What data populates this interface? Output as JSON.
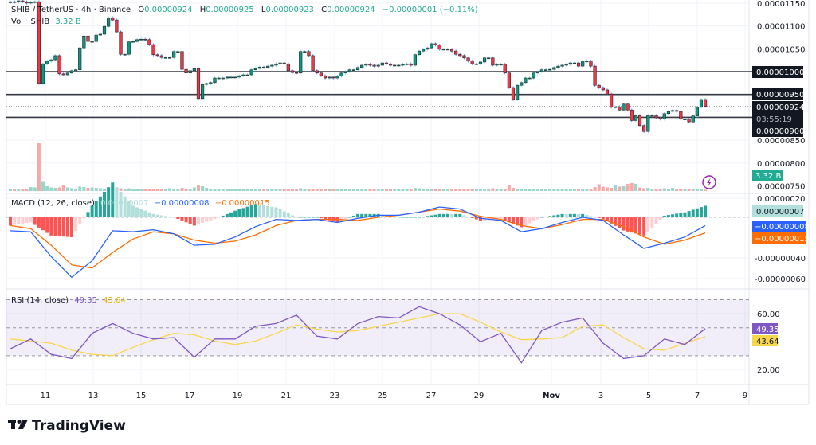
{
  "header": {
    "symbol": "SHIB / TetherUS · 4h · Binance",
    "o_label": "O",
    "o_value": "0.00000924",
    "h_label": "H",
    "h_value": "0.00000925",
    "l_label": "L",
    "l_value": "0.00000923",
    "c_label": "C",
    "c_value": "0.00000924",
    "change": "−0.00000001 (−0.11%)",
    "vol_label": "Vol · SHIB",
    "vol_value": "3.32 B"
  },
  "colors": {
    "up": "#089981",
    "down": "#f23645",
    "legend_value": "#22ab94",
    "macd": "#2962ff",
    "signal": "#ff6d00",
    "rsi": "#7e57c2",
    "rsi_ma": "#f7d74a",
    "hist_up_strong": "#26a69a",
    "hist_up_weak": "#b2dfdb",
    "hist_down_strong": "#ff5252",
    "hist_down_weak": "#ffcdd2"
  },
  "price_axis": {
    "ticks": [
      "0.00001150",
      "0.00001100",
      "0.00001050",
      "0.00000850",
      "0.00000800",
      "0.00000750"
    ],
    "levels": [
      "0.00001000",
      "0.00000950",
      "0.00000900"
    ],
    "current_price": "0.00000924",
    "countdown": "03:55:19",
    "volume_badge": "3.32 B"
  },
  "macd": {
    "label": "MACD (12, 26, close)",
    "hist_value": "0.00000007",
    "macd_value": "−0.00000008",
    "signal_value": "−0.00000015",
    "ticks": [
      "0.00000020",
      "-0.00000040",
      "-0.00000060"
    ]
  },
  "rsi": {
    "label": "RSI (14, close)",
    "rsi_value": "49.35",
    "ma_value": "43.64",
    "ticks": [
      "60.00",
      "20.00"
    ]
  },
  "time_axis": {
    "labels": [
      "11",
      "13",
      "15",
      "17",
      "19",
      "21",
      "23",
      "25",
      "27",
      "29",
      "Nov",
      "3",
      "5",
      "7",
      "9"
    ]
  },
  "brand": {
    "name": "TradingView"
  },
  "chart_data": {
    "type": "candlestick",
    "interval": "4h",
    "levels": [
      1e-05,
      9.5e-06,
      9e-06
    ],
    "close": [
      1.153e-05,
      1.152e-05,
      1.155e-05,
      1.153e-05,
      1.15e-05,
      1.152e-05,
      1.153e-05,
      9.74e-06,
      1.017e-05,
      1.023e-05,
      1.026e-05,
      1.035e-05,
      9.95e-06,
      9.93e-06,
      9.97e-06,
      1.002e-05,
      1.004e-05,
      1.052e-05,
      1.078e-05,
      1.066e-05,
      1.066e-05,
      1.08e-05,
      1.082e-05,
      1.099e-05,
      1.118e-05,
      1.113e-05,
      1.087e-05,
      1.038e-05,
      1.038e-05,
      1.065e-05,
      1.066e-05,
      1.07e-05,
      1.071e-05,
      1.07e-05,
      1.059e-05,
      1.037e-05,
      1.035e-05,
      1.031e-05,
      1.031e-05,
      1.031e-05,
      1.044e-05,
      1.044e-05,
      1.005e-05,
      9.97e-06,
      1.002e-05,
      1.007e-05,
      9.41e-06,
      9.72e-06,
      9.74e-06,
      9.76e-06,
      9.86e-06,
      9.86e-06,
      9.86e-06,
      9.88e-06,
      9.88e-06,
      9.88e-06,
      9.91e-06,
      9.93e-06,
      9.93e-06,
      1.004e-05,
      1.007e-05,
      1.01e-05,
      1.009e-05,
      1.012e-05,
      1.014e-05,
      1.017e-05,
      1.019e-05,
      1.017e-05,
      1.002e-05,
      9.98e-06,
      9.97e-06,
      1.044e-05,
      1.044e-05,
      1.035e-05,
      1.002e-05,
      9.97e-06,
      9.91e-06,
      9.86e-06,
      9.88e-06,
      9.86e-06,
      9.9e-06,
      9.97e-06,
      1e-05,
      1.004e-05,
      1.004e-05,
      1.009e-05,
      1.014e-05,
      1.016e-05,
      1.014e-05,
      1.012e-05,
      1.014e-05,
      1.019e-05,
      1.017e-05,
      1.014e-05,
      1.014e-05,
      1.014e-05,
      1.016e-05,
      1.017e-05,
      1.014e-05,
      1.037e-05,
      1.045e-05,
      1.049e-05,
      1.052e-05,
      1.061e-05,
      1.058e-05,
      1.049e-05,
      1.049e-05,
      1.049e-05,
      1.045e-05,
      1.038e-05,
      1.035e-05,
      1.03e-05,
      1.023e-05,
      1.017e-05,
      1.017e-05,
      1.021e-05,
      1.03e-05,
      1.03e-05,
      1.014e-05,
      1.016e-05,
      1.016e-05,
      9.97e-06,
      9.65e-06,
      9.39e-06,
      9.7e-06,
      9.76e-06,
      9.86e-06,
      9.86e-06,
      9.97e-06,
      1e-05,
      1.004e-05,
      1.004e-05,
      1.005e-05,
      1.009e-05,
      1.012e-05,
      1.014e-05,
      1.016e-05,
      1.019e-05,
      1.019e-05,
      1.012e-05,
      1.023e-05,
      1.023e-05,
      1.012e-05,
      9.7e-06,
      9.65e-06,
      9.6e-06,
      9.51e-06,
      9.22e-06,
      9.23e-06,
      9.16e-06,
      9.29e-06,
      9.16e-06,
      8.93e-06,
      9.04e-06,
      8.82e-06,
      8.69e-06,
      9.04e-06,
      9.04e-06,
      8.99e-06,
      8.96e-06,
      9.08e-06,
      9.13e-06,
      9.15e-06,
      9.13e-06,
      8.96e-06,
      8.96e-06,
      8.9e-06,
      9.03e-06,
      9.22e-06,
      9.39e-06,
      9.24e-06
    ],
    "volume_billions": [
      6,
      5,
      4,
      5,
      5,
      10,
      9,
      120,
      25,
      12,
      9,
      8,
      9,
      14,
      9,
      7,
      6,
      11,
      10,
      8,
      9,
      8,
      7,
      6,
      7,
      9,
      8,
      7,
      6,
      7,
      4,
      5,
      6,
      5,
      4,
      5,
      5,
      4,
      6,
      7,
      6,
      5,
      8,
      4,
      5,
      9,
      14,
      12,
      8,
      5,
      4,
      4,
      4,
      5,
      4,
      4,
      4,
      5,
      6,
      5,
      4,
      5,
      4,
      6,
      4,
      5,
      5,
      4,
      5,
      6,
      5,
      7,
      6,
      5,
      4,
      5,
      6,
      5,
      4,
      4,
      5,
      4,
      5,
      4,
      6,
      5,
      4,
      5,
      5,
      4,
      4,
      5,
      4,
      5,
      4,
      4,
      5,
      4,
      5,
      8,
      7,
      5,
      6,
      5,
      4,
      4,
      5,
      4,
      4,
      5,
      6,
      5,
      5,
      4,
      4,
      5,
      5,
      4,
      7,
      6,
      5,
      5,
      14,
      8,
      6,
      5,
      5,
      4,
      5,
      4,
      5,
      4,
      4,
      5,
      4,
      4,
      5,
      5,
      4,
      4,
      4,
      5,
      6,
      10,
      17,
      11,
      9,
      8,
      16,
      11,
      12,
      18,
      20,
      18,
      9,
      7,
      8,
      6,
      5,
      6,
      7,
      6,
      8,
      6,
      6,
      5,
      6,
      5,
      6,
      6,
      3.32
    ],
    "macd_every_5_bars": {
      "macd": [
        -1.3e-07,
        -1.4e-07,
        -3.8e-07,
        -5.8e-07,
        -4.2e-07,
        -1.3e-07,
        -1.4e-07,
        -1.2e-07,
        -1.6e-07,
        -2.7e-07,
        -2.6e-07,
        -1.9e-07,
        -9e-08,
        -2e-08,
        -3e-08,
        -2e-08,
        -5e-08,
        -1e-08,
        2e-08,
        2e-08,
        5e-08,
        1e-07,
        8e-08,
        -1e-08,
        -3e-08,
        -1.4e-07,
        -1.1e-07,
        -5e-08,
        0.0,
        -3e-08,
        -1.7e-07,
        -3e-07,
        -2.5e-07,
        -1.9e-07,
        -8e-08
      ],
      "signal": [
        -8e-08,
        -1.1e-07,
        -2.7e-07,
        -4.6e-07,
        -4.9e-07,
        -3.4e-07,
        -2.1e-07,
        -1.4e-07,
        -1.6e-07,
        -2.2e-07,
        -2.5e-07,
        -2.3e-07,
        -1.7e-07,
        -8e-08,
        -3e-08,
        -2e-08,
        -2e-08,
        -3e-08,
        0.0,
        2e-08,
        5e-08,
        8e-08,
        6e-08,
        1e-08,
        -2e-08,
        -8e-08,
        -1.1e-07,
        -7e-08,
        -2e-08,
        -2e-08,
        -9e-08,
        -1.9e-07,
        -2.6e-07,
        -2.2e-07,
        -1.5e-07
      ]
    },
    "rsi_every_5_bars": {
      "rsi": [
        35,
        42,
        31,
        28,
        46,
        53,
        46,
        42,
        43,
        29,
        42,
        42,
        51,
        53,
        59,
        44,
        42,
        53,
        58,
        57,
        65,
        60,
        52,
        40,
        46,
        25,
        48,
        54,
        57,
        39,
        28,
        30,
        42,
        38,
        49.35
      ],
      "ma": [
        42,
        40.5,
        39,
        34,
        31,
        30,
        36,
        41.5,
        46,
        45,
        40.5,
        38,
        40.5,
        46,
        52,
        49,
        47,
        48,
        51,
        54,
        57,
        60,
        60,
        54,
        47,
        41.5,
        42,
        43,
        51,
        52,
        43,
        35,
        34,
        39,
        43.64
      ],
      "bands": [
        70,
        50,
        30
      ]
    }
  }
}
